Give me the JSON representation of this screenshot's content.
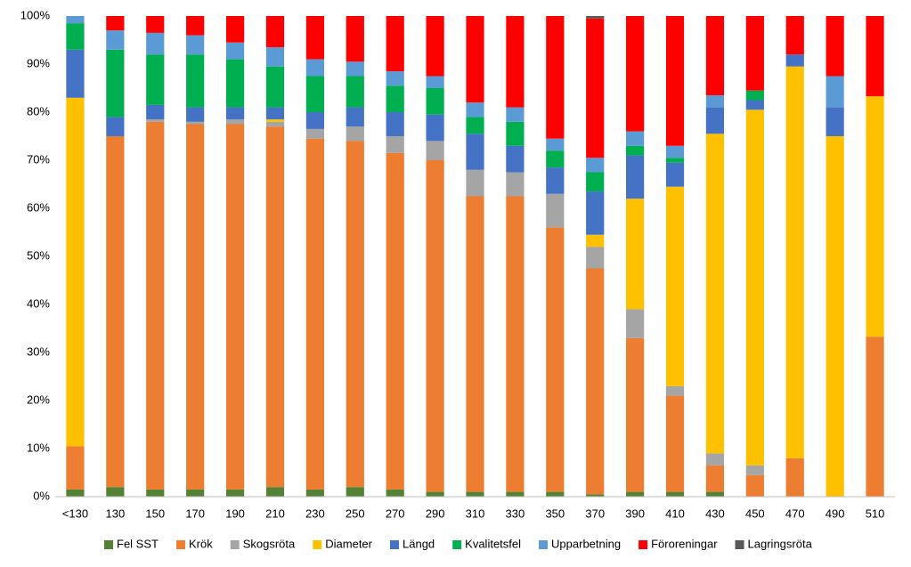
{
  "chart_data": {
    "type": "stacked_bar",
    "categories": [
      "<130",
      "130",
      "150",
      "170",
      "190",
      "210",
      "230",
      "250",
      "270",
      "290",
      "310",
      "330",
      "350",
      "370",
      "390",
      "410",
      "430",
      "450",
      "470",
      "490",
      "510"
    ],
    "series": [
      {
        "name": "Fel SST",
        "color": "#548235",
        "values": [
          1.5,
          2,
          1.5,
          1.5,
          1.5,
          2,
          1.5,
          2,
          1.5,
          1,
          1,
          1,
          1,
          0.5,
          1,
          1,
          1,
          0,
          0,
          0,
          0
        ]
      },
      {
        "name": "Krök",
        "color": "#ED7D31",
        "values": [
          9,
          73,
          76.5,
          76,
          76,
          75,
          73,
          72,
          70,
          69,
          61.5,
          61.5,
          55,
          47,
          32,
          20,
          5.5,
          4.5,
          8,
          0,
          33.3
        ]
      },
      {
        "name": "Skogsröta",
        "color": "#A5A5A5",
        "values": [
          0,
          0,
          0.5,
          0.5,
          1,
          1,
          2,
          3,
          3.5,
          4,
          5.5,
          5,
          7,
          4.5,
          6,
          2,
          2.5,
          2,
          0,
          0,
          0
        ]
      },
      {
        "name": "Diameter",
        "color": "#FFC000",
        "values": [
          72.5,
          0,
          0,
          0,
          0,
          0.5,
          0,
          0,
          0,
          0,
          0,
          0,
          0,
          2.5,
          23,
          41.5,
          66.5,
          74,
          81.5,
          75,
          50
        ]
      },
      {
        "name": "Längd",
        "color": "#4472C4",
        "values": [
          10,
          4,
          3,
          3,
          2.5,
          2.5,
          3.5,
          4,
          5,
          5.5,
          7.5,
          5.5,
          5.5,
          9,
          9,
          5,
          5.5,
          2,
          2.5,
          6,
          0
        ]
      },
      {
        "name": "Kvalitetsfel",
        "color": "#00B050",
        "values": [
          5.5,
          14,
          10.5,
          11,
          10,
          8.5,
          7.5,
          6.5,
          5.5,
          5.5,
          3.5,
          5,
          3.5,
          4,
          2,
          1,
          0,
          2,
          0,
          0,
          0
        ]
      },
      {
        "name": "Upparbetning",
        "color": "#5B9BD5",
        "values": [
          1.5,
          4,
          4.5,
          4,
          3.5,
          4,
          3.5,
          3,
          3,
          2.5,
          3,
          3,
          2.5,
          3,
          3,
          2.5,
          2.5,
          0,
          0,
          6.5,
          0
        ]
      },
      {
        "name": "Föroreningar",
        "color": "#FF0000",
        "values": [
          0,
          3,
          3.5,
          4,
          5.5,
          6.5,
          9,
          9.5,
          11.5,
          12.5,
          18,
          19,
          25.5,
          29,
          24,
          27,
          16.5,
          15.5,
          8,
          12.5,
          16.7
        ]
      },
      {
        "name": "Lagringsröta",
        "color": "#595959",
        "values": [
          0,
          0,
          0,
          0,
          0,
          0,
          0,
          0,
          0,
          0,
          0,
          0,
          0,
          0.5,
          0,
          0,
          0,
          0,
          0,
          0,
          0
        ]
      }
    ],
    "ylim": [
      0,
      100
    ],
    "yticks": [
      {
        "value": 0,
        "label": "0%"
      },
      {
        "value": 10,
        "label": "10%"
      },
      {
        "value": 20,
        "label": "20%"
      },
      {
        "value": 30,
        "label": "30%"
      },
      {
        "value": 40,
        "label": "40%"
      },
      {
        "value": 50,
        "label": "50%"
      },
      {
        "value": 60,
        "label": "60%"
      },
      {
        "value": 70,
        "label": "70%"
      },
      {
        "value": 80,
        "label": "80%"
      },
      {
        "value": 90,
        "label": "90%"
      },
      {
        "value": 100,
        "label": "100%"
      }
    ],
    "grid": false,
    "legend": "bottom"
  }
}
